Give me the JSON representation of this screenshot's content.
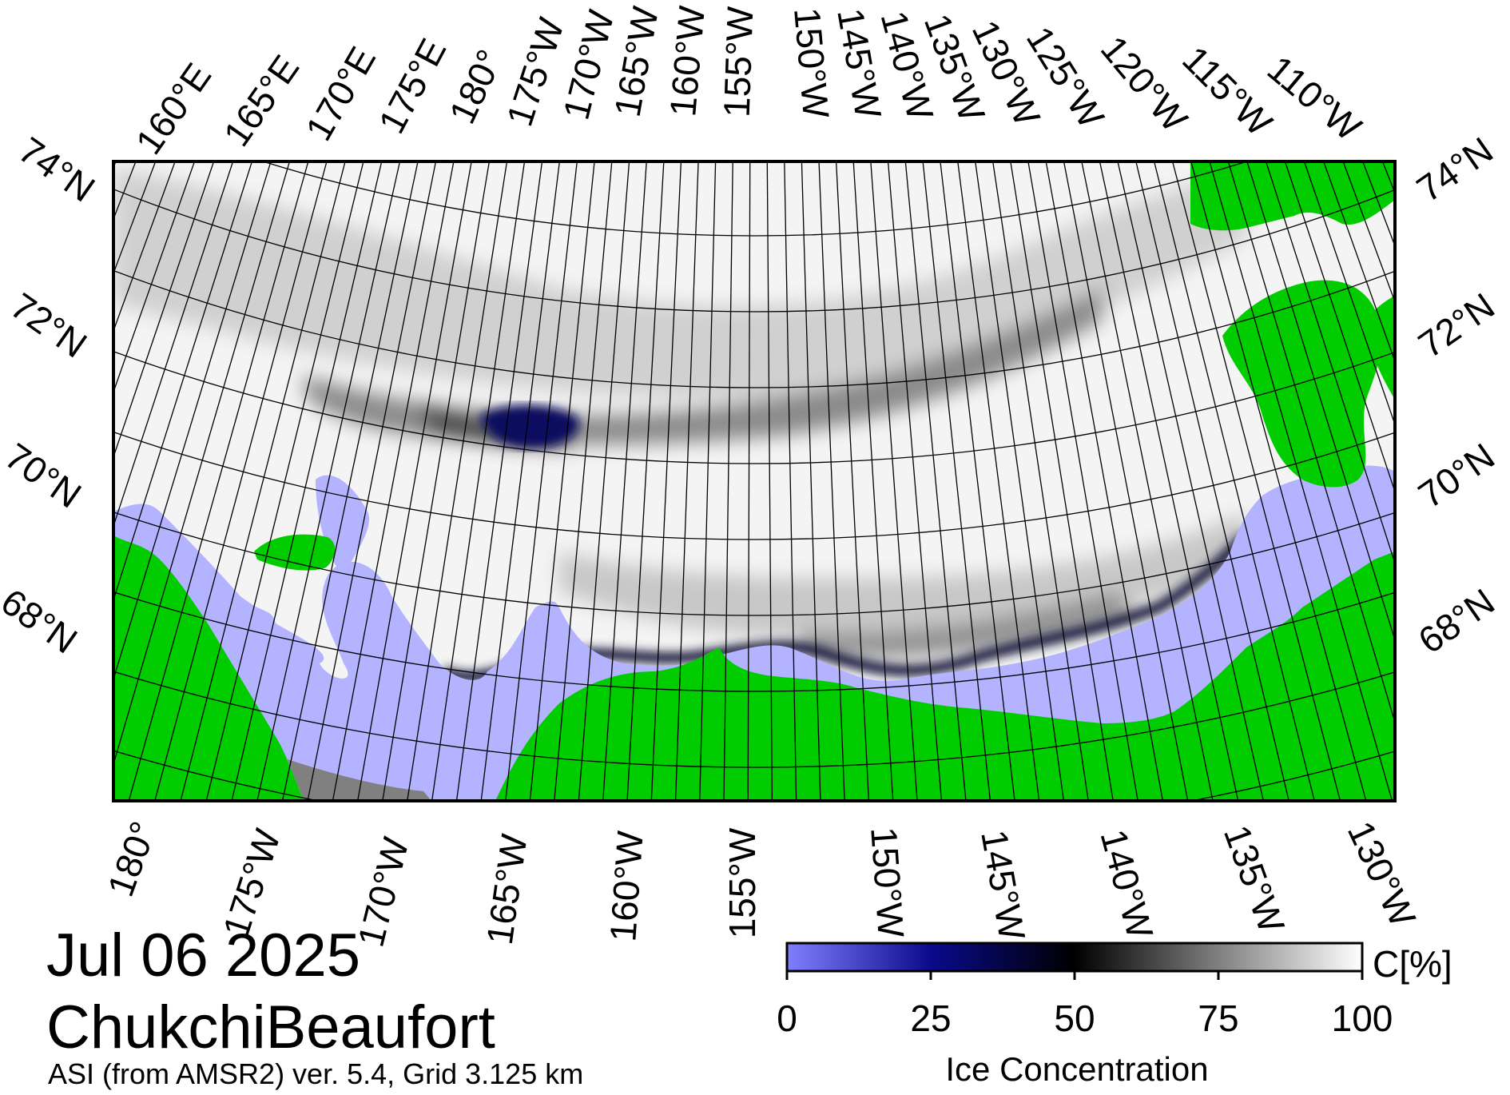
{
  "figure": {
    "date": "Jul 06 2025",
    "region": "ChukchiBeaufort",
    "source": "ASI (from AMSR2) ver. 5.4,  Grid 3.125 km"
  },
  "colors": {
    "land": "#00cc00",
    "open_water": "#b3b3ff",
    "no_data": "#808080",
    "ice_low": "#1a1a8c",
    "ice_mid": "#000000",
    "ice_high": "#ffffff"
  },
  "map_labels": {
    "top_longitudes": [
      "160°E",
      "165°E",
      "170°E",
      "175°E",
      "180°",
      "175°W",
      "170°W",
      "165°W",
      "160°W",
      "155°W",
      "150°W",
      "145°W",
      "140°W",
      "135°W",
      "130°W",
      "125°W",
      "120°W",
      "115°W",
      "110°W"
    ],
    "left_latitudes": [
      "74°N",
      "72°N",
      "70°N",
      "68°N"
    ],
    "right_latitudes": [
      "74°N",
      "72°N",
      "70°N",
      "68°N"
    ],
    "bottom_longitudes": [
      "180°",
      "175°W",
      "170°W",
      "165°W",
      "160°W",
      "155°W",
      "150°W",
      "145°W",
      "140°W",
      "135°W",
      "130°W"
    ]
  },
  "colorbar": {
    "unit": "C[%]",
    "title": "Ice Concentration",
    "ticks": [
      "0",
      "25",
      "50",
      "75",
      "100"
    ],
    "range": [
      0,
      100
    ]
  }
}
